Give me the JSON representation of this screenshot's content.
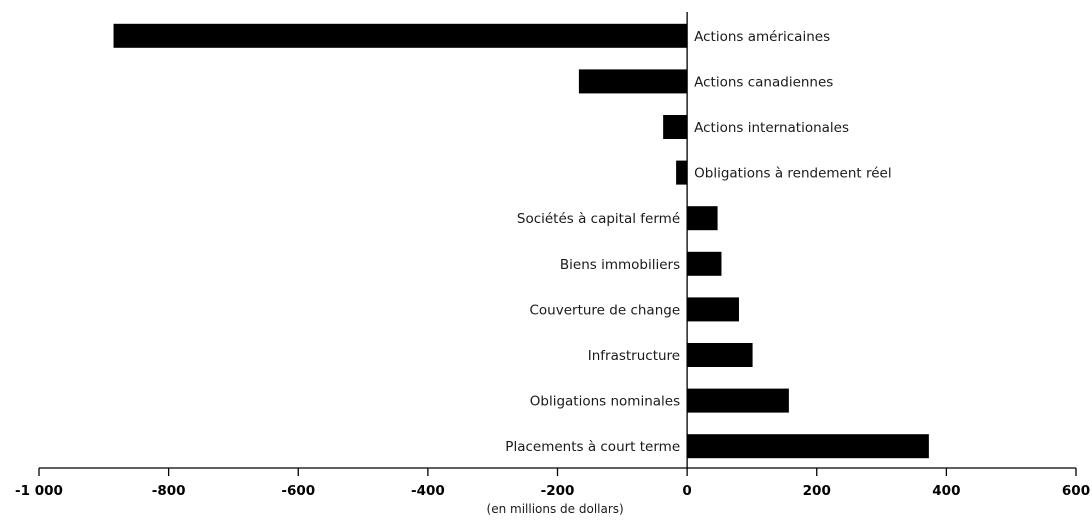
{
  "chart_data": {
    "type": "bar",
    "orientation": "horizontal",
    "categories": [
      "Actions américaines",
      "Actions canadiennes",
      "Actions internationales",
      "Obligations à rendement réel",
      "Sociétés à capital fermé",
      "Biens immobiliers",
      "Couverture de change",
      "Infrastructure",
      "Obligations nominales",
      "Placements à court terme"
    ],
    "values": [
      -885,
      -167,
      -37,
      -17,
      47,
      53,
      80,
      101,
      157,
      373
    ],
    "xlim": [
      -1000,
      600
    ],
    "xticks": [
      -1000,
      -800,
      -600,
      -400,
      -200,
      0,
      200,
      400,
      600
    ],
    "xtick_labels": [
      "-1 000",
      "-800",
      "-600",
      "-400",
      "-200",
      "0",
      "200",
      "400",
      "600"
    ],
    "xlabel": "(en millions de dollars)",
    "grid": false,
    "colors": {
      "bar": "#000000",
      "axis": "#000000"
    }
  }
}
